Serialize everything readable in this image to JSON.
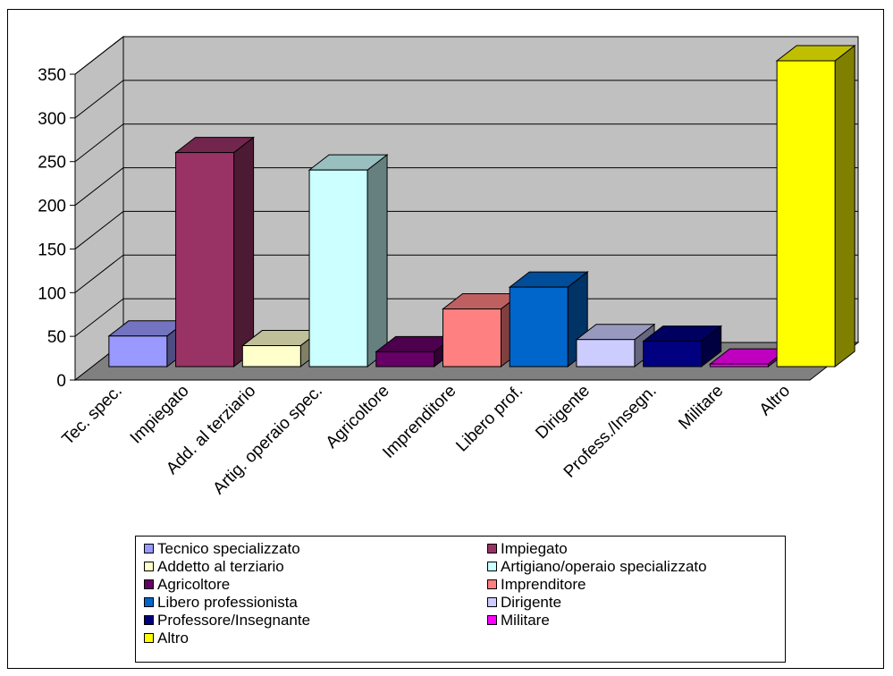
{
  "chart_data": {
    "type": "bar",
    "title": "",
    "xlabel": "",
    "ylabel": "",
    "ylim": [
      0,
      350
    ],
    "yticks": [
      0,
      50,
      100,
      150,
      200,
      250,
      300,
      350
    ],
    "grid": true,
    "three_d": true,
    "legend_position": "bottom",
    "categories": [
      "Tec. spec.",
      "Impiegato",
      "Add. al terziario",
      "Artig. operaio spec.",
      "Agricoltore",
      "Imprenditore",
      "Libero prof.",
      "Dirigente",
      "Profess./Insegn.",
      "Militare",
      "Altro"
    ],
    "series": [
      {
        "name": "Tecnico specializzato",
        "value": 35,
        "color": "#9999FF"
      },
      {
        "name": "Impiegato",
        "value": 245,
        "color": "#993366"
      },
      {
        "name": "Addetto al terziario",
        "value": 24,
        "color": "#FFFFCC"
      },
      {
        "name": "Artigiano/operaio specializzato",
        "value": 225,
        "color": "#CCFFFF"
      },
      {
        "name": "Agricoltore",
        "value": 17,
        "color": "#660066"
      },
      {
        "name": "Imprenditore",
        "value": 66,
        "color": "#FF8080"
      },
      {
        "name": "Libero professionista",
        "value": 91,
        "color": "#0066CC"
      },
      {
        "name": "Dirigente",
        "value": 31,
        "color": "#CCCCFF"
      },
      {
        "name": "Professore/Insegnante",
        "value": 29,
        "color": "#000080"
      },
      {
        "name": "Militare",
        "value": 3,
        "color": "#FF00FF"
      },
      {
        "name": "Altro",
        "value": 350,
        "color": "#FFFF00"
      }
    ],
    "colors": {
      "wall": "#C0C0C0",
      "floor": "#808080",
      "grid": "#000000"
    }
  }
}
